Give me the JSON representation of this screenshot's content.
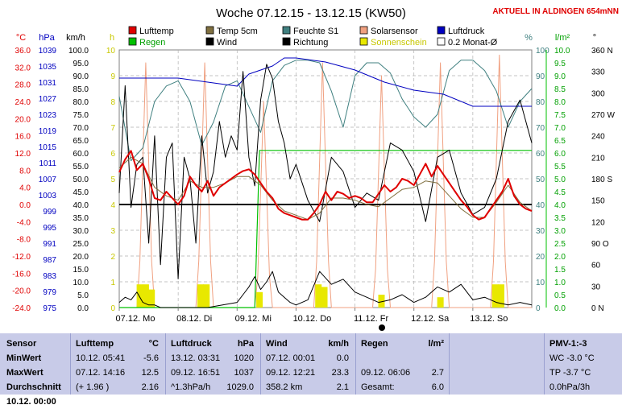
{
  "title": "Woche 07.12.15 - 13.12.15 (KW50)",
  "banner": "AKTUELL IN ALDINGEN 654mNN",
  "chart_data": {
    "type": "line",
    "title": "Woche 07.12.15 - 13.12.15 (KW50)",
    "x_labels": [
      "07.12. Mo",
      "08.12. Di",
      "09.12. Mi",
      "10.12. Do",
      "11.12. Fr",
      "12.12. Sa",
      "13.12. So"
    ],
    "x_start_day": 7,
    "x_range_days": [
      7,
      14
    ],
    "axes": {
      "temp": {
        "unit": "°C",
        "ticks": [
          "36.0",
          "32.0",
          "28.0",
          "24.0",
          "20.0",
          "16.0",
          "12.0",
          "8.0",
          "4.0",
          "0.0",
          "-4.0",
          "-8.0",
          "-12.0",
          "-16.0",
          "-20.0",
          "-24.0"
        ],
        "range": [
          -24,
          36
        ],
        "color": "#e00000"
      },
      "pressure": {
        "unit": "hPa",
        "ticks": [
          "1039",
          "1035",
          "1031",
          "1027",
          "1023",
          "1019",
          "1015",
          "1011",
          "1007",
          "1003",
          "999",
          "995",
          "991",
          "987",
          "983",
          "979",
          "975"
        ],
        "range": [
          975,
          1039
        ],
        "color": "#0000c0"
      },
      "wind": {
        "unit": "km/h",
        "ticks": [
          "100.0",
          "95.0",
          "90.0",
          "85.0",
          "80.0",
          "75.0",
          "70.0",
          "65.0",
          "60.0",
          "55.0",
          "50.0",
          "45.0",
          "40.0",
          "35.0",
          "30.0",
          "25.0",
          "20.0",
          "15.0",
          "10.0",
          "5.0",
          "0.0"
        ],
        "range": [
          0,
          100
        ],
        "color": "#000000"
      },
      "sun": {
        "unit": "h",
        "ticks": [
          "10",
          "9",
          "8",
          "7",
          "6",
          "5",
          "4",
          "3",
          "2",
          "1",
          "0"
        ],
        "range": [
          0,
          10
        ],
        "color": "#c8c800"
      },
      "humidity": {
        "unit": "%",
        "ticks": [
          "100",
          "90",
          "80",
          "70",
          "60",
          "50",
          "40",
          "30",
          "20",
          "10",
          "0"
        ],
        "range": [
          0,
          100
        ],
        "color": "#408080"
      },
      "rain": {
        "unit": "l/m²",
        "ticks": [
          "10.0",
          "9.5",
          "9.0",
          "8.5",
          "8.0",
          "7.5",
          "7.0",
          "6.5",
          "6.0",
          "5.5",
          "5.0",
          "4.5",
          "4.0",
          "3.5",
          "3.0",
          "2.5",
          "2.0",
          "1.5",
          "1.0",
          "0.5",
          "0.0"
        ],
        "range": [
          0,
          10
        ],
        "color": "#00c000"
      },
      "direction": {
        "unit": "°",
        "ticks": [
          "360 N",
          "330",
          "300",
          "270 W",
          "240",
          "210",
          "180 S",
          "150",
          "120",
          "90 O",
          "60",
          "30",
          "0 N"
        ],
        "range": [
          0,
          360
        ],
        "color": "#000000"
      }
    },
    "legend": [
      {
        "name": "Lufttemp",
        "color": "#e00000"
      },
      {
        "name": "Temp 5cm",
        "color": "#807040"
      },
      {
        "name": "Feuchte S1",
        "color": "#408080"
      },
      {
        "name": "Solarsensor",
        "color": "#f0a080"
      },
      {
        "name": "Luftdruck",
        "color": "#0000c0"
      },
      {
        "name": "Regen",
        "color": "#00c000"
      },
      {
        "name": "Wind",
        "color": "#000000"
      },
      {
        "name": "Richtung",
        "color": "#000000"
      },
      {
        "name": "Sonnenschein",
        "color": "#e8e800"
      },
      {
        "name": "0.2 Monat-Ø",
        "color": "#ffffff"
      }
    ],
    "reference_line": {
      "axis": "wind",
      "value": 40
    },
    "series": {
      "lufttemp": {
        "x": [
          7.0,
          7.1,
          7.2,
          7.3,
          7.4,
          7.5,
          7.6,
          7.7,
          7.8,
          7.9,
          8.0,
          8.1,
          8.2,
          8.3,
          8.4,
          8.5,
          8.6,
          8.7,
          8.8,
          8.9,
          9.0,
          9.1,
          9.2,
          9.3,
          9.4,
          9.5,
          9.6,
          9.7,
          9.8,
          9.9,
          10.0,
          10.1,
          10.2,
          10.3,
          10.4,
          10.5,
          10.6,
          10.7,
          10.8,
          10.9,
          11.0,
          11.1,
          11.2,
          11.3,
          11.4,
          11.5,
          11.6,
          11.7,
          11.8,
          11.9,
          12.0,
          12.1,
          12.2,
          12.3,
          12.4,
          12.5,
          12.6,
          12.7,
          12.8,
          12.9,
          13.0,
          13.1,
          13.2,
          13.3,
          13.4,
          13.5,
          13.6,
          13.7,
          13.8,
          13.9,
          14.0
        ],
        "y": [
          7.5,
          10.5,
          12.5,
          8.0,
          9.5,
          6.0,
          1.5,
          1.0,
          3.0,
          1.5,
          0.0,
          2.0,
          6.5,
          4.5,
          3.0,
          5.5,
          2.0,
          4.0,
          5.0,
          6.0,
          7.0,
          7.8,
          8.2,
          7.0,
          5.0,
          3.0,
          1.5,
          -1.0,
          -2.0,
          -2.5,
          -3.0,
          -3.5,
          -3.5,
          -2.0,
          0.0,
          3.0,
          1.0,
          3.0,
          2.5,
          1.5,
          2.0,
          1.5,
          0.5,
          0.5,
          2.5,
          4.5,
          3.0,
          4.0,
          6.0,
          5.5,
          4.5,
          7.0,
          9.5,
          6.5,
          9.0,
          7.0,
          5.0,
          3.0,
          1.0,
          -0.5,
          -2.5,
          -3.5,
          -3.0,
          -1.0,
          1.0,
          3.0,
          6.0,
          2.0,
          0.0,
          -1.0,
          -1.5
        ]
      },
      "temp5cm": {
        "x": [
          7.0,
          7.2,
          7.4,
          7.6,
          7.8,
          8.0,
          8.2,
          8.4,
          8.6,
          8.8,
          9.0,
          9.2,
          9.4,
          9.6,
          9.8,
          10.0,
          10.2,
          10.4,
          10.6,
          10.8,
          11.0,
          11.2,
          11.4,
          11.6,
          11.8,
          12.0,
          12.2,
          12.4,
          12.6,
          12.8,
          13.0,
          13.2,
          13.4,
          13.6,
          13.8,
          14.0
        ],
        "y": [
          8.5,
          11.0,
          9.5,
          4.0,
          2.0,
          1.0,
          5.5,
          4.0,
          4.0,
          5.0,
          6.5,
          6.5,
          4.5,
          1.0,
          -1.5,
          -2.5,
          -3.5,
          -2.0,
          1.5,
          1.5,
          1.0,
          0.0,
          -0.5,
          1.5,
          3.5,
          4.0,
          5.5,
          5.0,
          2.0,
          -1.0,
          -3.0,
          -3.0,
          0.5,
          4.5,
          0.5,
          -1.5
        ]
      },
      "feuchte": {
        "x": [
          7.0,
          7.2,
          7.4,
          7.6,
          7.8,
          8.0,
          8.2,
          8.4,
          8.6,
          8.8,
          9.0,
          9.2,
          9.4,
          9.6,
          9.8,
          10.0,
          10.2,
          10.4,
          10.6,
          10.8,
          11.0,
          11.2,
          11.4,
          11.6,
          11.8,
          12.0,
          12.2,
          12.4,
          12.6,
          12.8,
          13.0,
          13.2,
          13.4,
          13.6,
          13.8,
          14.0
        ],
        "y": [
          82,
          57,
          62,
          80,
          86,
          88,
          80,
          63,
          72,
          86,
          88,
          78,
          68,
          88,
          94,
          96,
          96,
          95,
          84,
          70,
          90,
          95,
          95,
          91,
          81,
          74,
          70,
          75,
          92,
          96,
          96,
          92,
          84,
          70,
          80,
          85
        ]
      },
      "luftdruck": {
        "x": [
          7.0,
          7.5,
          8.0,
          8.5,
          9.0,
          9.2,
          9.4,
          9.6,
          9.8,
          10.0,
          10.5,
          11.0,
          11.5,
          12.0,
          12.5,
          13.0,
          13.5,
          14.0
        ],
        "y": [
          1032,
          1032,
          1032,
          1031,
          1030,
          1033,
          1034,
          1035,
          1037,
          1037,
          1036,
          1034,
          1031,
          1029,
          1028,
          1025,
          1025,
          1025
        ]
      },
      "regen": {
        "x": [
          7.0,
          9.3,
          9.38,
          14.0
        ],
        "y": [
          0,
          0,
          6.1,
          6.1
        ]
      },
      "wind": {
        "x": [
          7.0,
          7.1,
          7.2,
          7.3,
          7.4,
          7.5,
          7.6,
          7.7,
          7.8,
          7.9,
          8.0,
          8.5,
          9.0,
          9.1,
          9.2,
          9.3,
          9.4,
          9.5,
          9.6,
          9.7,
          9.8,
          9.9,
          10.0,
          10.2,
          10.4,
          10.6,
          10.8,
          11.0,
          11.2,
          11.4,
          11.6,
          11.8,
          12.0,
          12.2,
          12.4,
          12.6,
          12.8,
          13.0,
          13.2,
          13.4,
          13.6,
          13.8,
          14.0
        ],
        "y": [
          2,
          4,
          3,
          6,
          2,
          1,
          1,
          0,
          0,
          0,
          0,
          0,
          2,
          5,
          8,
          12,
          7,
          10,
          14,
          6,
          4,
          2,
          1,
          3,
          14,
          9,
          11,
          6,
          4,
          2,
          3,
          5,
          2,
          4,
          8,
          6,
          9,
          3,
          4,
          2,
          1,
          2,
          1
        ]
      },
      "solar": {
        "x": [
          7.0,
          7.3,
          7.35,
          7.45,
          7.55,
          7.6,
          8.3,
          8.35,
          8.45,
          8.55,
          8.6,
          9.3,
          9.35,
          9.45,
          9.55,
          9.6,
          10.3,
          10.35,
          10.45,
          10.55,
          10.6,
          11.3,
          11.35,
          11.45,
          11.55,
          11.6,
          12.3,
          12.35,
          12.45,
          12.55,
          12.6,
          13.3,
          13.35,
          13.45,
          13.55,
          13.6,
          14.0
        ],
        "y": [
          0,
          0,
          18,
          95,
          18,
          0,
          0,
          18,
          95,
          18,
          0,
          0,
          12,
          80,
          12,
          0,
          0,
          18,
          95,
          18,
          0,
          0,
          15,
          90,
          15,
          0,
          0,
          18,
          95,
          18,
          0,
          0,
          18,
          98,
          18,
          0,
          0
        ]
      },
      "richtung": {
        "x": [
          7.0,
          7.1,
          7.2,
          7.3,
          7.4,
          7.5,
          7.6,
          7.7,
          7.8,
          7.9,
          8.0,
          8.1,
          8.2,
          8.3,
          8.4,
          8.5,
          8.6,
          8.7,
          8.8,
          8.9,
          9.0,
          9.1,
          9.2,
          9.3,
          9.4,
          9.5,
          9.6,
          9.7,
          9.8,
          9.9,
          10.0,
          10.2,
          10.4,
          10.6,
          10.8,
          11.0,
          11.2,
          11.4,
          11.6,
          11.8,
          12.0,
          12.2,
          12.4,
          12.6,
          12.8,
          13.0,
          13.2,
          13.4,
          13.6,
          13.8,
          14.0
        ],
        "y": [
          160,
          310,
          140,
          200,
          210,
          90,
          240,
          60,
          210,
          230,
          40,
          210,
          180,
          90,
          240,
          160,
          190,
          260,
          210,
          240,
          220,
          330,
          210,
          170,
          290,
          340,
          320,
          260,
          230,
          180,
          200,
          150,
          120,
          210,
          190,
          140,
          160,
          150,
          230,
          220,
          190,
          120,
          210,
          220,
          160,
          130,
          140,
          180,
          260,
          290,
          230
        ]
      },
      "sonnenschein": {
        "bars": [
          [
            7.35,
            0.9
          ],
          [
            7.45,
            0.9
          ],
          [
            7.55,
            0.7
          ],
          [
            8.38,
            0.9
          ],
          [
            8.48,
            0.9
          ],
          [
            9.38,
            0.6
          ],
          [
            10.38,
            0.9
          ],
          [
            10.48,
            0.8
          ],
          [
            11.45,
            0.5
          ],
          [
            12.45,
            0.4
          ],
          [
            13.38,
            0.9
          ],
          [
            13.48,
            0.9
          ]
        ]
      }
    }
  },
  "stats": {
    "sensor": {
      "header": "Sensor",
      "rows": [
        "MinWert",
        "MaxWert",
        "Durchschnitt",
        "10.12. 00:00"
      ]
    },
    "lufttemp": {
      "header": "Lufttemp",
      "unit": "°C",
      "rows": [
        [
          "10.12.  05:41",
          "-5.6"
        ],
        [
          "07.12.  14:16",
          "12.5"
        ],
        [
          "(+ 1.96 )",
          "2.16"
        ],
        [
          "",
          ""
        ]
      ]
    },
    "luftdruck": {
      "header": "Luftdruck",
      "unit": "hPa",
      "rows": [
        [
          "13.12.  03:31",
          "1020"
        ],
        [
          "09.12.  16:51",
          "1037"
        ],
        [
          "^1.3hPa/h",
          "1029.0"
        ],
        [
          "",
          ""
        ]
      ]
    },
    "wind": {
      "header": "Wind",
      "unit": "km/h",
      "rows": [
        [
          "07.12.  00:01",
          "0.0"
        ],
        [
          "09.12.  12:21",
          "23.3"
        ],
        [
          "358.2 km",
          "2.1"
        ],
        [
          "",
          ""
        ]
      ]
    },
    "regen": {
      "header": "Regen",
      "unit": "l/m²",
      "rows": [
        [
          "",
          ""
        ],
        [
          "09.12.  06:06",
          "2.7"
        ],
        [
          "Gesamt:",
          "6.0"
        ],
        [
          "",
          ""
        ]
      ]
    },
    "pmv": {
      "header": "PMV-1:-3",
      "rows": [
        "WC -3.0 °C",
        "TP -3.7 °C",
        "0.0hPa/3h",
        ""
      ]
    }
  }
}
